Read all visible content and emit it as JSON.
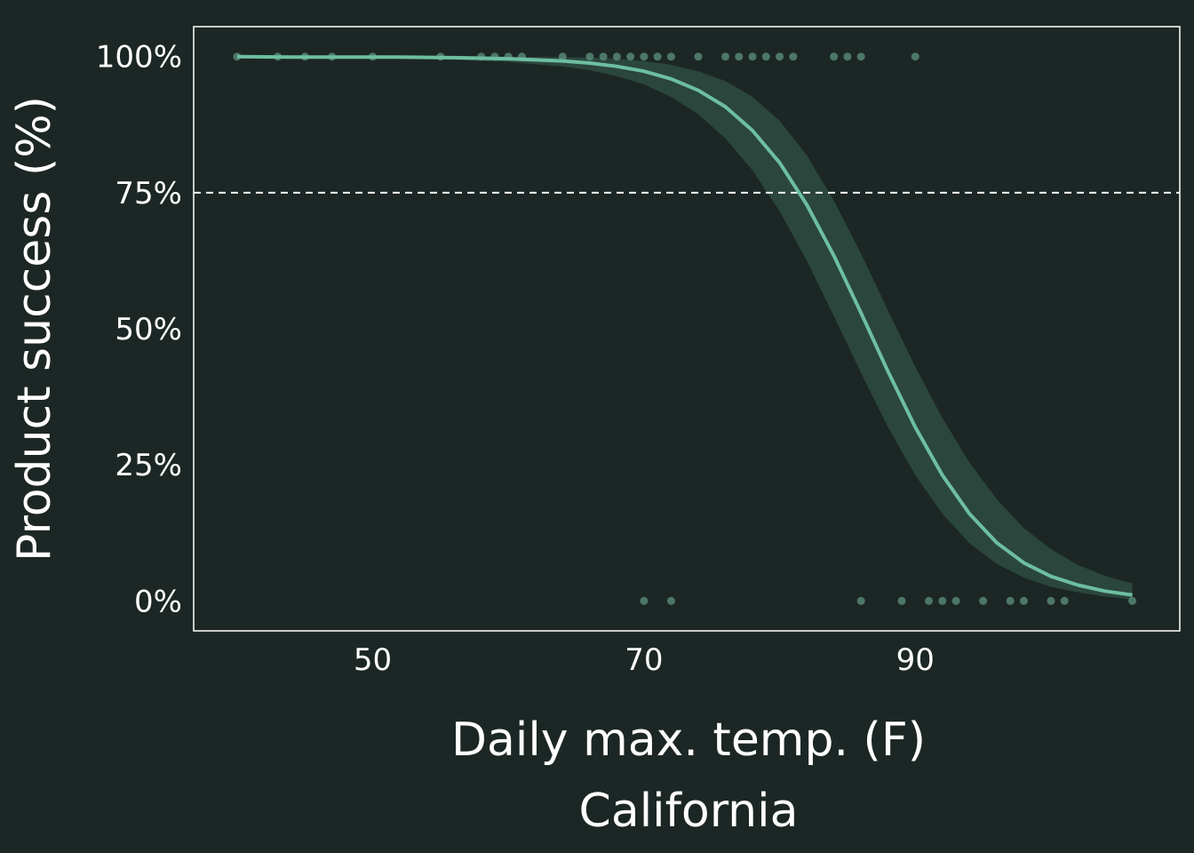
{
  "chart_data": {
    "type": "line",
    "xlabel": "Daily max. temp. (F)",
    "subtitle": "California",
    "ylabel": "Product success (%)",
    "xlim": [
      36.8,
      109.5
    ],
    "ylim": [
      -5.5,
      105.5
    ],
    "x_ticks": [
      50,
      70,
      90
    ],
    "y_ticks": [
      0,
      25,
      50,
      75,
      100
    ],
    "y_tick_labels": [
      "0%",
      "25%",
      "50%",
      "75%",
      "100%"
    ],
    "reference_line": {
      "y": 75,
      "style": "dashed"
    },
    "colors": {
      "background": "#1c2725",
      "plot_border": "#ffffff",
      "curve": "#6dbfa0",
      "band": "#2e4a40",
      "points": "#5a8c7a",
      "reference_line": "#ffffff"
    },
    "fit_curve": {
      "x": [
        40,
        44,
        48,
        52,
        56,
        60,
        64,
        66,
        68,
        70,
        72,
        74,
        76,
        78,
        80,
        82,
        84,
        86,
        88,
        90,
        92,
        94,
        96,
        98,
        100,
        102,
        104,
        106
      ],
      "y": [
        100,
        99.9,
        99.9,
        99.9,
        99.8,
        99.6,
        99.2,
        98.8,
        98.2,
        97.3,
        95.9,
        93.8,
        90.8,
        86.4,
        80.5,
        72.8,
        63.4,
        52.9,
        42.1,
        31.9,
        23.1,
        16.0,
        10.7,
        7.0,
        4.5,
        2.9,
        1.8,
        1.1
      ],
      "band_upper": [
        100,
        100,
        100,
        100,
        100,
        100,
        99.9,
        99.8,
        99.6,
        99.2,
        98.5,
        97.3,
        95.5,
        92.6,
        88.2,
        81.9,
        73.5,
        63.8,
        53.3,
        43.0,
        33.6,
        25.4,
        18.7,
        13.4,
        9.5,
        6.6,
        4.6,
        3.2
      ],
      "band_lower": [
        99.9,
        99.8,
        99.7,
        99.6,
        99.4,
        99.0,
        98.2,
        97.5,
        96.4,
        94.9,
        92.6,
        89.4,
        85.0,
        79.1,
        71.6,
        62.5,
        52.3,
        41.9,
        31.9,
        23.1,
        16.0,
        10.6,
        6.8,
        4.3,
        2.6,
        1.6,
        0.8,
        0.3
      ]
    },
    "observations": {
      "success_x": [
        40,
        43,
        45,
        47,
        50,
        55,
        58,
        59,
        60,
        61,
        64,
        66,
        67,
        68,
        69,
        70,
        71,
        72,
        74,
        76,
        77,
        78,
        79,
        80,
        81,
        84,
        85,
        86,
        90
      ],
      "failure_x": [
        70,
        72,
        86,
        89,
        91,
        92,
        93,
        95,
        97,
        98,
        100,
        101,
        106
      ]
    }
  }
}
